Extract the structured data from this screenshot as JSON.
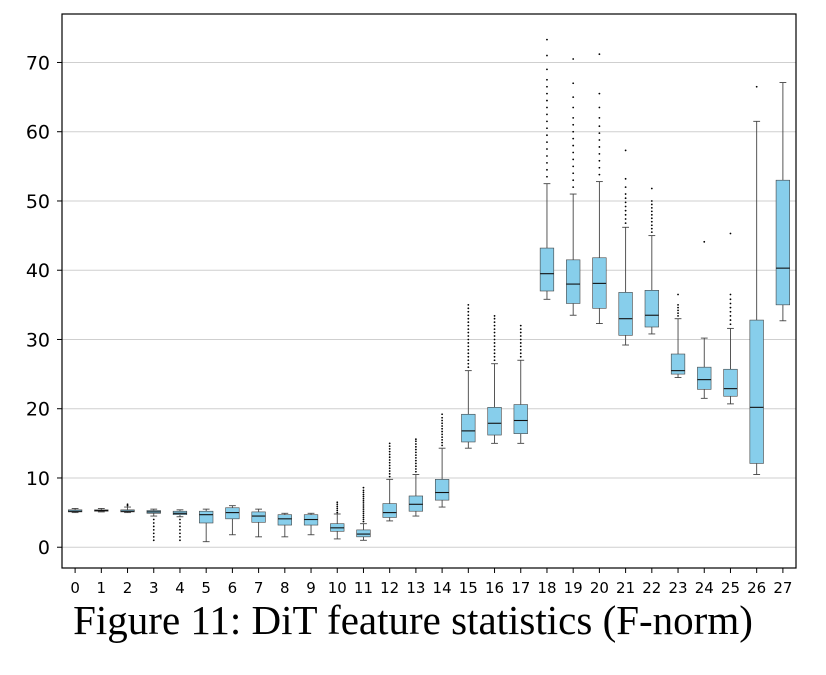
{
  "caption": "Figure 11: DiT feature statistics (F-norm)",
  "chart_data": {
    "type": "boxplot",
    "title": "",
    "xlabel": "",
    "ylabel": "",
    "ylim": [
      -3,
      77
    ],
    "yticks": [
      0,
      10,
      20,
      30,
      40,
      50,
      60,
      70
    ],
    "grid": "horizontal",
    "box_color": "#87ceeb",
    "edge_color": "#444444",
    "categories": [
      "0",
      "1",
      "2",
      "3",
      "4",
      "5",
      "6",
      "7",
      "8",
      "9",
      "10",
      "11",
      "12",
      "13",
      "14",
      "15",
      "16",
      "17",
      "18",
      "19",
      "20",
      "21",
      "22",
      "23",
      "24",
      "25",
      "26",
      "27"
    ],
    "boxes": [
      {
        "label": "0",
        "whislo": 5.0,
        "q1": 5.1,
        "med": 5.2,
        "q3": 5.4,
        "whishi": 5.6,
        "fliers": []
      },
      {
        "label": "1",
        "whislo": 5.1,
        "q1": 5.2,
        "med": 5.3,
        "q3": 5.4,
        "whishi": 5.6,
        "fliers": []
      },
      {
        "label": "2",
        "whislo": 5.0,
        "q1": 5.1,
        "med": 5.2,
        "q3": 5.4,
        "whishi": 5.8,
        "fliers": [
          6.0,
          6.2
        ]
      },
      {
        "label": "3",
        "whislo": 4.5,
        "q1": 4.9,
        "med": 5.1,
        "q3": 5.3,
        "whishi": 5.5,
        "fliers": [
          1.0,
          1.5,
          2.0,
          2.5,
          3.0,
          3.5,
          4.0
        ]
      },
      {
        "label": "4",
        "whislo": 4.4,
        "q1": 4.7,
        "med": 4.9,
        "q3": 5.2,
        "whishi": 5.4,
        "fliers": [
          1.0,
          1.5,
          2.0,
          2.5,
          3.0,
          3.5,
          4.0
        ]
      },
      {
        "label": "5",
        "whislo": 0.8,
        "q1": 3.5,
        "med": 4.7,
        "q3": 5.2,
        "whishi": 5.5,
        "fliers": []
      },
      {
        "label": "6",
        "whislo": 1.8,
        "q1": 4.1,
        "med": 5.0,
        "q3": 5.7,
        "whishi": 6.0,
        "fliers": []
      },
      {
        "label": "7",
        "whislo": 1.5,
        "q1": 3.6,
        "med": 4.5,
        "q3": 5.1,
        "whishi": 5.5,
        "fliers": []
      },
      {
        "label": "8",
        "whislo": 1.5,
        "q1": 3.2,
        "med": 4.1,
        "q3": 4.7,
        "whishi": 4.9,
        "fliers": []
      },
      {
        "label": "9",
        "whislo": 1.8,
        "q1": 3.2,
        "med": 4.0,
        "q3": 4.7,
        "whishi": 4.9,
        "fliers": []
      },
      {
        "label": "10",
        "whislo": 1.2,
        "q1": 2.3,
        "med": 2.8,
        "q3": 3.4,
        "whishi": 4.8,
        "fliers": [
          5.0,
          5.3,
          5.6,
          5.9,
          6.2,
          6.5
        ]
      },
      {
        "label": "11",
        "whislo": 1.0,
        "q1": 1.5,
        "med": 1.9,
        "q3": 2.5,
        "whishi": 3.4,
        "fliers": [
          3.7,
          4.0,
          4.3,
          4.6,
          4.9,
          5.2,
          5.5,
          5.8,
          6.1,
          6.4,
          6.7,
          7.0,
          7.3,
          7.6,
          7.9,
          8.2,
          8.6
        ]
      },
      {
        "label": "12",
        "whislo": 3.8,
        "q1": 4.3,
        "med": 5.0,
        "q3": 6.3,
        "whishi": 9.8,
        "fliers": [
          10.2,
          10.6,
          11.0,
          11.4,
          11.8,
          12.2,
          12.6,
          13.0,
          13.4,
          13.8,
          14.2,
          14.6,
          15.0
        ]
      },
      {
        "label": "13",
        "whislo": 4.5,
        "q1": 5.2,
        "med": 6.2,
        "q3": 7.4,
        "whishi": 10.5,
        "fliers": [
          10.9,
          11.3,
          11.7,
          12.1,
          12.5,
          12.9,
          13.3,
          13.7,
          14.1,
          14.5,
          14.9,
          15.3,
          15.6
        ]
      },
      {
        "label": "14",
        "whislo": 5.8,
        "q1": 6.8,
        "med": 7.9,
        "q3": 9.8,
        "whishi": 14.3,
        "fliers": [
          14.7,
          15.1,
          15.5,
          15.9,
          16.3,
          16.7,
          17.1,
          17.5,
          17.9,
          18.3,
          18.7,
          19.2
        ]
      },
      {
        "label": "15",
        "whislo": 14.3,
        "q1": 15.2,
        "med": 16.8,
        "q3": 19.2,
        "whishi": 25.5,
        "fliers": [
          26.0,
          26.5,
          27.0,
          27.5,
          28.0,
          28.5,
          29.0,
          29.5,
          30.0,
          30.5,
          31.0,
          31.5,
          32.0,
          32.5,
          33.0,
          33.5,
          34.0,
          34.5,
          35.0
        ]
      },
      {
        "label": "16",
        "whislo": 15.0,
        "q1": 16.2,
        "med": 17.9,
        "q3": 20.2,
        "whishi": 26.5,
        "fliers": [
          27.0,
          27.5,
          28.0,
          28.5,
          29.0,
          29.5,
          30.0,
          30.5,
          31.0,
          31.5,
          32.0,
          32.5,
          33.0,
          33.4
        ]
      },
      {
        "label": "17",
        "whislo": 15.0,
        "q1": 16.4,
        "med": 18.3,
        "q3": 20.6,
        "whishi": 27.0,
        "fliers": [
          27.5,
          28.0,
          28.5,
          29.0,
          29.5,
          30.0,
          30.5,
          31.0,
          31.5,
          32.0
        ]
      },
      {
        "label": "18",
        "whislo": 35.8,
        "q1": 37.0,
        "med": 39.5,
        "q3": 43.2,
        "whishi": 52.5,
        "fliers": [
          53.5,
          54.5,
          55.5,
          56.5,
          57.5,
          58.5,
          59.5,
          60.5,
          61.5,
          62.5,
          63.5,
          64.5,
          65.5,
          66.5,
          67.5,
          69.0,
          71.0,
          73.3
        ]
      },
      {
        "label": "19",
        "whislo": 33.5,
        "q1": 35.2,
        "med": 38.0,
        "q3": 41.5,
        "whishi": 51.0,
        "fliers": [
          52.0,
          53.0,
          54.0,
          55.0,
          56.0,
          57.0,
          58.0,
          59.0,
          60.0,
          61.0,
          62.0,
          63.5,
          65.0,
          67.0,
          70.5
        ]
      },
      {
        "label": "20",
        "whislo": 32.3,
        "q1": 34.5,
        "med": 38.1,
        "q3": 41.8,
        "whishi": 52.8,
        "fliers": [
          53.8,
          54.8,
          55.8,
          56.8,
          57.8,
          58.8,
          59.8,
          60.8,
          62.0,
          63.5,
          65.5,
          71.2
        ]
      },
      {
        "label": "21",
        "whislo": 29.2,
        "q1": 30.6,
        "med": 33.0,
        "q3": 36.8,
        "whishi": 46.2,
        "fliers": [
          46.8,
          47.4,
          48.0,
          48.6,
          49.2,
          49.8,
          50.4,
          51.0,
          52.0,
          53.2,
          57.3
        ]
      },
      {
        "label": "22",
        "whislo": 30.8,
        "q1": 31.8,
        "med": 33.5,
        "q3": 37.1,
        "whishi": 45.0,
        "fliers": [
          45.5,
          46.0,
          46.5,
          47.0,
          47.5,
          48.0,
          48.5,
          49.0,
          49.5,
          50.0,
          51.8
        ]
      },
      {
        "label": "23",
        "whislo": 24.5,
        "q1": 25.0,
        "med": 25.5,
        "q3": 27.9,
        "whishi": 33.0,
        "fliers": [
          33.4,
          33.8,
          34.2,
          34.6,
          35.0,
          36.5
        ]
      },
      {
        "label": "24",
        "whislo": 21.5,
        "q1": 22.8,
        "med": 24.2,
        "q3": 26.0,
        "whishi": 30.2,
        "fliers": [
          44.1
        ]
      },
      {
        "label": "25",
        "whislo": 20.7,
        "q1": 21.8,
        "med": 22.9,
        "q3": 25.7,
        "whishi": 31.6,
        "fliers": [
          32.2,
          32.8,
          33.4,
          34.0,
          34.6,
          35.2,
          35.8,
          36.5,
          45.3
        ]
      },
      {
        "label": "26",
        "whislo": 10.5,
        "q1": 12.1,
        "med": 20.2,
        "q3": 32.8,
        "whishi": 61.5,
        "fliers": [
          66.5
        ]
      },
      {
        "label": "27",
        "whislo": 32.7,
        "q1": 35.0,
        "med": 40.3,
        "q3": 53.0,
        "whishi": 67.1,
        "fliers": []
      }
    ]
  }
}
